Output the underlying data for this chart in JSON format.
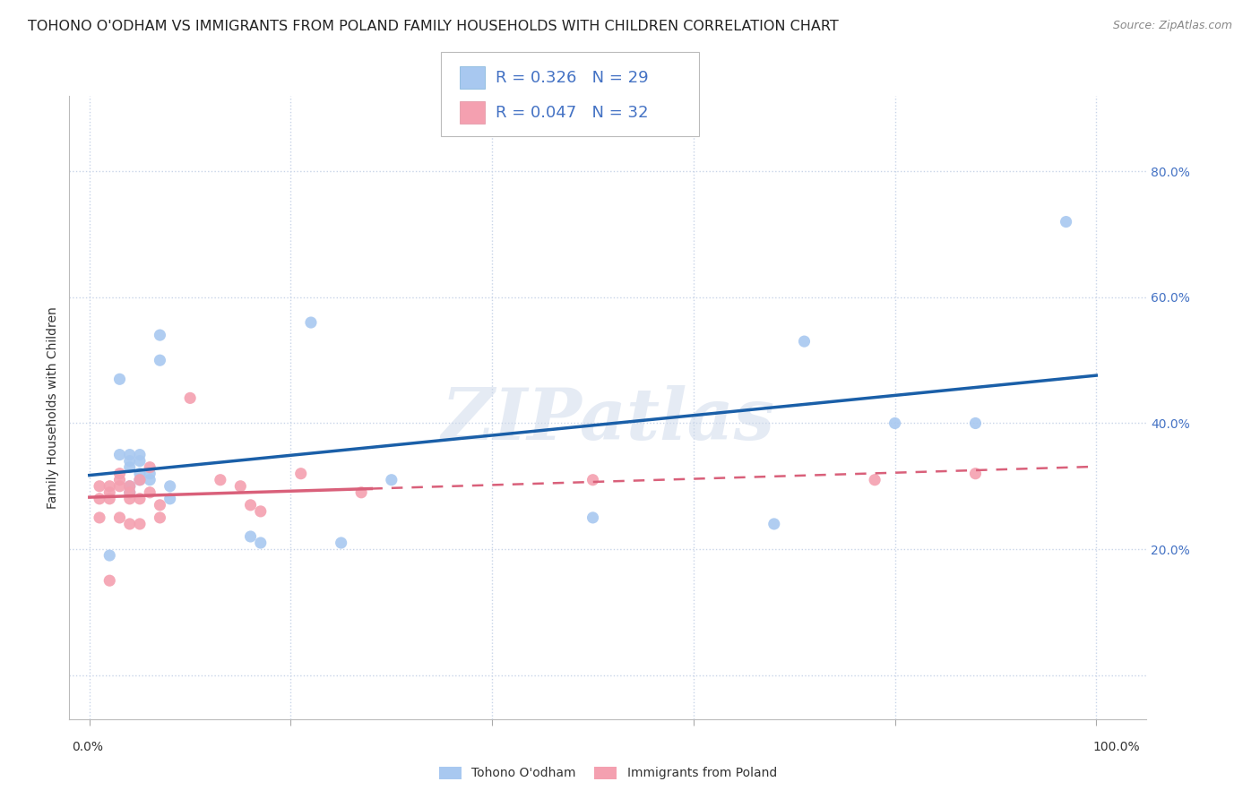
{
  "title": "TOHONO O'ODHAM VS IMMIGRANTS FROM POLAND FAMILY HOUSEHOLDS WITH CHILDREN CORRELATION CHART",
  "source": "Source: ZipAtlas.com",
  "ylabel": "Family Households with Children",
  "watermark": "ZIPatlas",
  "legend2_labels": [
    "Tohono O'odham",
    "Immigrants from Poland"
  ],
  "legend2_colors": [
    "#a8c8f0",
    "#f4a0b0"
  ],
  "blue_color": "#a8c8f0",
  "pink_color": "#f4a0b0",
  "blue_line_color": "#1a5fa8",
  "pink_line_color": "#d9607a",
  "pink_dash_color": "#d9607a",
  "yticks": [
    0.0,
    0.2,
    0.4,
    0.6,
    0.8
  ],
  "ytick_labels": [
    "",
    "20.0%",
    "40.0%",
    "60.0%",
    "80.0%"
  ],
  "ylim": [
    -0.07,
    0.92
  ],
  "xlim": [
    -0.02,
    1.05
  ],
  "blue_x": [
    0.02,
    0.03,
    0.03,
    0.04,
    0.04,
    0.04,
    0.04,
    0.04,
    0.05,
    0.05,
    0.05,
    0.05,
    0.06,
    0.06,
    0.07,
    0.07,
    0.08,
    0.08,
    0.16,
    0.17,
    0.22,
    0.25,
    0.3,
    0.5,
    0.68,
    0.71,
    0.8,
    0.88,
    0.97
  ],
  "blue_y": [
    0.19,
    0.47,
    0.35,
    0.35,
    0.34,
    0.33,
    0.3,
    0.29,
    0.35,
    0.34,
    0.32,
    0.31,
    0.32,
    0.31,
    0.54,
    0.5,
    0.3,
    0.28,
    0.22,
    0.21,
    0.56,
    0.21,
    0.31,
    0.25,
    0.24,
    0.53,
    0.4,
    0.4,
    0.72
  ],
  "pink_x": [
    0.01,
    0.01,
    0.01,
    0.02,
    0.02,
    0.02,
    0.02,
    0.03,
    0.03,
    0.03,
    0.03,
    0.04,
    0.04,
    0.04,
    0.04,
    0.05,
    0.05,
    0.05,
    0.06,
    0.06,
    0.07,
    0.07,
    0.1,
    0.13,
    0.15,
    0.16,
    0.17,
    0.21,
    0.27,
    0.5,
    0.78,
    0.88
  ],
  "pink_y": [
    0.3,
    0.28,
    0.25,
    0.3,
    0.29,
    0.28,
    0.15,
    0.32,
    0.31,
    0.3,
    0.25,
    0.3,
    0.29,
    0.28,
    0.24,
    0.31,
    0.28,
    0.24,
    0.33,
    0.29,
    0.27,
    0.25,
    0.44,
    0.31,
    0.3,
    0.27,
    0.26,
    0.32,
    0.29,
    0.31,
    0.31,
    0.32
  ],
  "background_color": "#ffffff",
  "grid_color": "#c8d4e8",
  "title_fontsize": 11.5,
  "axis_label_fontsize": 10,
  "tick_fontsize": 10,
  "legend_fontsize": 13
}
